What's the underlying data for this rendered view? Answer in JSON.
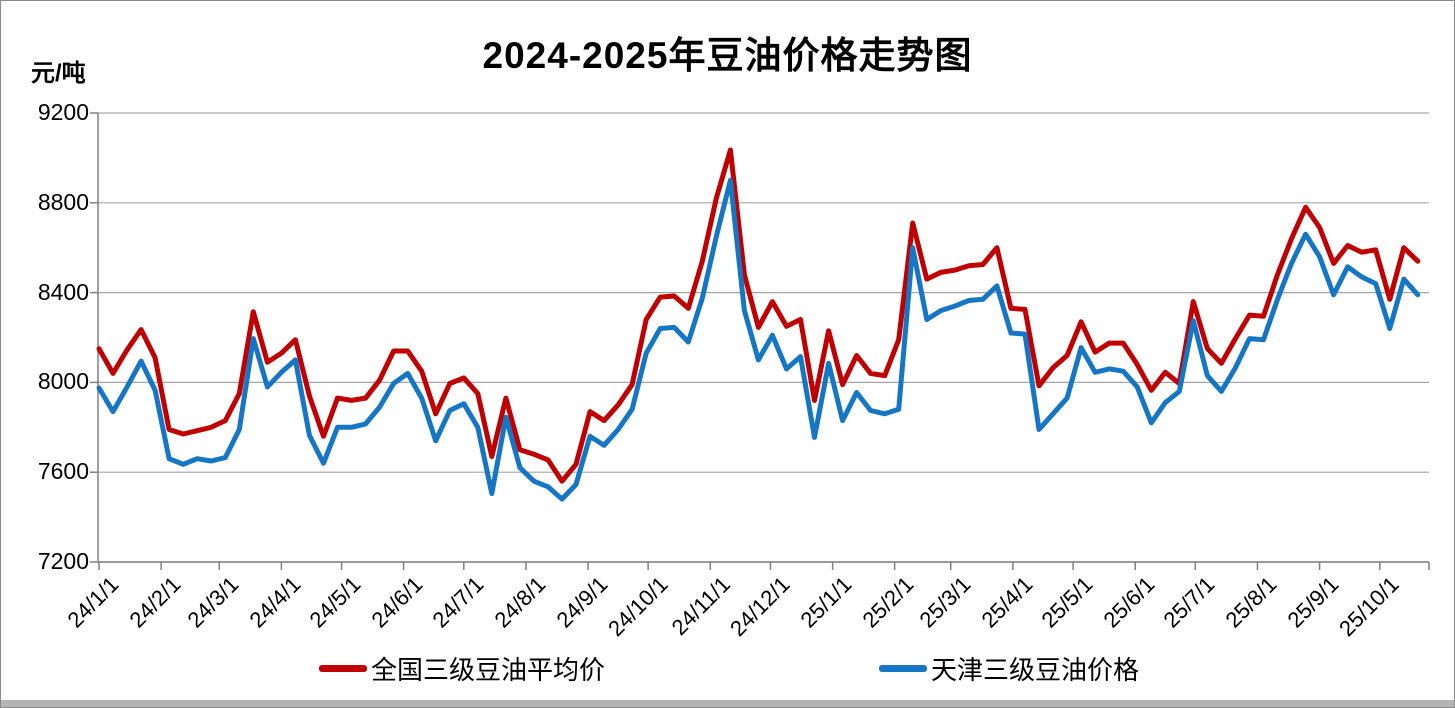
{
  "window": {
    "title": "2024-2025年豆油价格走势图"
  },
  "y_axis": {
    "unit_label": "元/吨",
    "tick_labels": [
      "9200",
      "8800",
      "8400",
      "8000",
      "7600",
      "7200"
    ]
  },
  "legend": {
    "items": [
      {
        "label": "全国三级豆油平均价",
        "color": "#c00000"
      },
      {
        "label": "天津三级豆油价格",
        "color": "#1576c6"
      }
    ]
  },
  "chart_data": {
    "type": "line",
    "title": "2024-2025年豆油价格走势图",
    "xlabel": "",
    "ylabel": "元/吨",
    "ylim": [
      7200,
      9200
    ],
    "y_ticks": [
      7200,
      7600,
      8000,
      8400,
      8800,
      9200
    ],
    "grid": "horizontal",
    "legend_position": "bottom",
    "x_unit": "weekly observations starting 2024/1/1",
    "categories": [
      "24/1/1",
      "24/2/1",
      "24/3/1",
      "24/4/1",
      "24/5/1",
      "24/6/1",
      "24/7/1",
      "24/8/1",
      "24/9/1",
      "24/10/1",
      "24/11/1",
      "24/12/1",
      "25/1/1",
      "25/2/1",
      "25/3/1",
      "25/4/1",
      "25/5/1",
      "25/6/1",
      "25/7/1",
      "25/8/1",
      "25/9/1",
      "25/10/1"
    ],
    "tick_weeks": [
      0,
      4.43,
      8.57,
      13,
      17.29,
      21.71,
      26,
      30.43,
      34.86,
      39.14,
      43.57,
      47.86,
      52.29,
      56.71,
      60.71,
      65.14,
      69.43,
      73.86,
      78.14,
      82.57,
      87,
      91.29
    ],
    "series": [
      {
        "name": "全国三级豆油平均价",
        "color": "#c00000",
        "values": [
          8150,
          8040,
          8145,
          8235,
          8110,
          7790,
          7770,
          7785,
          7800,
          7830,
          7950,
          8315,
          8090,
          8130,
          8190,
          7940,
          7760,
          7930,
          7920,
          7930,
          8010,
          8140,
          8140,
          8050,
          7860,
          7995,
          8020,
          7950,
          7670,
          7930,
          7700,
          7680,
          7655,
          7560,
          7635,
          7870,
          7830,
          7900,
          7990,
          8280,
          8380,
          8385,
          8330,
          8540,
          8820,
          9035,
          8480,
          8245,
          8360,
          8250,
          8280,
          7920,
          8230,
          7990,
          8120,
          8040,
          8030,
          8190,
          8710,
          8460,
          8490,
          8500,
          8520,
          8525,
          8600,
          8330,
          8325,
          7985,
          8065,
          8120,
          8270,
          8135,
          8175,
          8175,
          8080,
          7965,
          8045,
          7995,
          8360,
          8150,
          8085,
          8195,
          8300,
          8295,
          8480,
          8640,
          8780,
          8690,
          8530,
          8610,
          8580,
          8590,
          8370,
          8600,
          8540
        ]
      },
      {
        "name": "天津三级豆油价格",
        "color": "#1576c6",
        "values": [
          7975,
          7870,
          7980,
          8095,
          7965,
          7660,
          7635,
          7660,
          7650,
          7665,
          7790,
          8195,
          7980,
          8045,
          8100,
          7765,
          7640,
          7800,
          7800,
          7815,
          7890,
          7995,
          8040,
          7930,
          7740,
          7875,
          7905,
          7800,
          7505,
          7845,
          7620,
          7560,
          7535,
          7480,
          7545,
          7760,
          7720,
          7790,
          7880,
          8130,
          8240,
          8245,
          8180,
          8375,
          8650,
          8900,
          8320,
          8100,
          8210,
          8060,
          8115,
          7755,
          8085,
          7830,
          7955,
          7875,
          7860,
          7880,
          8600,
          8280,
          8320,
          8340,
          8365,
          8370,
          8430,
          8220,
          8215,
          7790,
          7860,
          7930,
          8155,
          8045,
          8060,
          8050,
          7980,
          7820,
          7910,
          7960,
          8275,
          8030,
          7960,
          8065,
          8195,
          8190,
          8370,
          8530,
          8660,
          8560,
          8390,
          8515,
          8470,
          8440,
          8240,
          8460,
          8390
        ]
      }
    ]
  },
  "colors": {
    "gridline": "#a6a6a6",
    "axis": "#808080",
    "background": "#ffffff",
    "border": "#8a8a8a",
    "bottom_strip": "#b4b4b4"
  }
}
